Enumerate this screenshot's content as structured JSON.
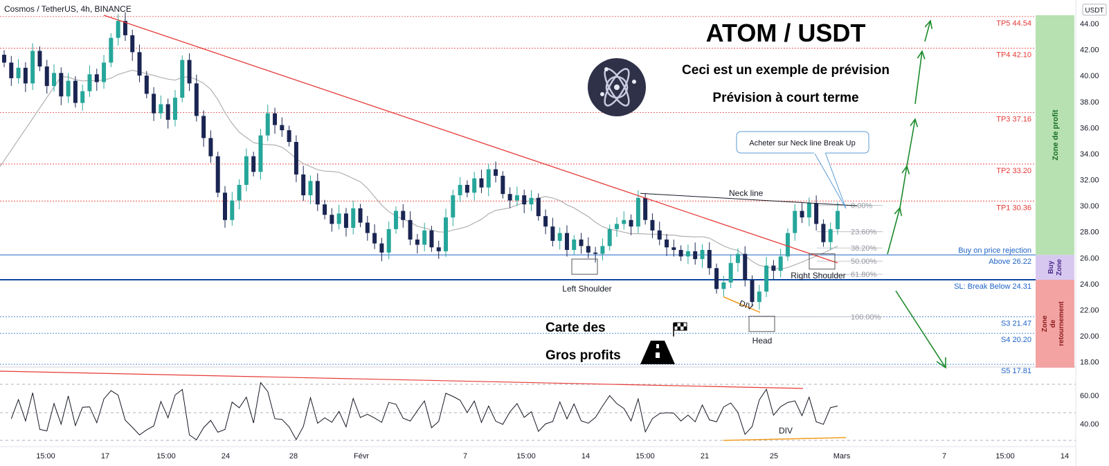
{
  "symbol_title": "Cosmos / TetherUS, 4h, BINANCE",
  "currency": "USDT",
  "headline": "ATOM / USDT",
  "subtitle1": "Ceci est un exemple de prévision",
  "subtitle2": "Prévision à court terme",
  "callout": "Acheter sur Neck line Break Up",
  "roadmap1": "Carte des",
  "roadmap2": "Gros profits",
  "icons": {
    "logo": "cosmos-atom-logo",
    "flag": "checkered-flag-icon",
    "road": "road-icon"
  },
  "colors": {
    "bull": "#26a69a",
    "bear": "#1a2552",
    "red": "#e53935",
    "blue": "#1e63c6",
    "green": "#1b8a2a",
    "profit_zone": "#b7e1b0",
    "buy_zone": "#d7c8f0",
    "reversal_zone": "#f4a3a3"
  },
  "chart_data": {
    "type": "candlestick",
    "y_axis": {
      "min": 18,
      "max": 44,
      "ticks": [
        "44.00",
        "42.00",
        "40.00",
        "38.00",
        "36.00",
        "34.00",
        "32.00",
        "30.00",
        "28.00",
        "26.00",
        "24.00",
        "22.00",
        "20.00",
        "18.00"
      ]
    },
    "x_ticks": [
      "15:00",
      "17",
      "15:00",
      "24",
      "28",
      "Févr",
      "7",
      "15:00",
      "14",
      "15:00",
      "21",
      "25",
      "Mars",
      "7",
      "15:00",
      "14"
    ],
    "close_series": [
      41.0,
      39.8,
      40.6,
      39.4,
      41.9,
      40.7,
      39.2,
      40.2,
      38.4,
      39.6,
      37.9,
      38.8,
      40.1,
      39.5,
      41.0,
      42.9,
      44.2,
      43.1,
      41.8,
      40.0,
      38.6,
      37.1,
      37.8,
      36.6,
      38.3,
      41.2,
      39.4,
      36.9,
      35.2,
      33.8,
      31.0,
      28.9,
      30.4,
      31.6,
      33.8,
      32.6,
      35.4,
      37.1,
      36.2,
      35.8,
      34.9,
      32.4,
      30.8,
      31.9,
      30.1,
      29.3,
      28.6,
      29.4,
      28.3,
      29.8,
      28.7,
      27.9,
      27.1,
      26.4,
      28.2,
      29.6,
      28.9,
      27.4,
      27.0,
      28.1,
      26.8,
      26.5,
      29.1,
      30.8,
      31.6,
      31.0,
      32.1,
      31.4,
      32.8,
      32.3,
      30.9,
      30.4,
      30.8,
      30.1,
      30.6,
      29.2,
      28.4,
      27.3,
      27.9,
      26.6,
      27.4,
      26.9,
      26.4,
      26.3,
      26.9,
      28.2,
      28.6,
      28.9,
      28.4,
      30.6,
      28.9,
      28.1,
      27.4,
      26.8,
      26.6,
      26.1,
      26.5,
      25.9,
      26.6,
      25.2,
      23.6,
      24.1,
      25.6,
      26.3,
      24.3,
      22.6,
      23.4,
      25.4,
      25.0,
      26.1,
      27.9,
      29.6,
      29.1,
      30.2,
      28.6,
      27.2,
      28.2,
      29.6
    ],
    "fibonacci": [
      {
        "label": "0.00%",
        "value": 30.02
      },
      {
        "label": "23.60%",
        "value": 28.0
      },
      {
        "label": "38.20%",
        "value": 26.75
      },
      {
        "label": "50.00%",
        "value": 25.74
      },
      {
        "label": "61.80%",
        "value": 24.73
      },
      {
        "label": "100.00%",
        "value": 21.47
      }
    ],
    "levels": [
      {
        "label": "TP5 44.54",
        "value": 44.54,
        "color": "red"
      },
      {
        "label": "TP4 42.10",
        "value": 42.1,
        "color": "red"
      },
      {
        "label": "TP3 37.16",
        "value": 37.16,
        "color": "red"
      },
      {
        "label": "TP2 33.20",
        "value": 33.2,
        "color": "red"
      },
      {
        "label": "TP1 30.36",
        "value": 30.36,
        "color": "red"
      },
      {
        "label": "Above 26.22",
        "value": 26.22,
        "color": "blue"
      },
      {
        "label": "SL: Break Below 24.31",
        "value": 24.31,
        "color": "blue"
      },
      {
        "label": "S3 21.47",
        "value": 21.47,
        "color": "blue"
      },
      {
        "label": "S4 20.20",
        "value": 20.2,
        "color": "blue"
      },
      {
        "label": "S5 17.81",
        "value": 17.81,
        "color": "blue"
      }
    ],
    "buy_note": "Buy on price rejection",
    "pattern_labels": {
      "neck": "Neck line",
      "left": "Left Shoulder",
      "head": "Head",
      "right": "Right Shoulder",
      "div": "DIV"
    },
    "zones": {
      "profit": "Zone de profit",
      "buy": "Buy Zone",
      "reversal": "Zone de retournement"
    },
    "rsi": {
      "ticks": [
        "60.00",
        "40.00"
      ],
      "div_label": "DIV"
    }
  }
}
